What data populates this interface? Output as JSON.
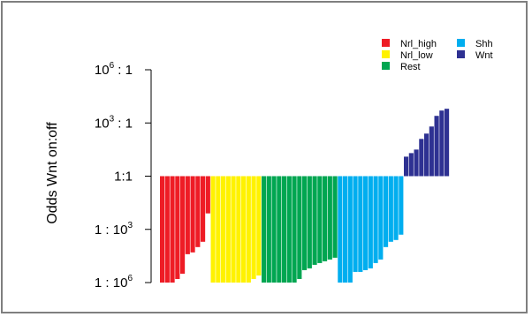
{
  "chart_data": {
    "type": "bar",
    "ylabel": "Odds Wnt on:off",
    "yscale": "log10",
    "baseline_exponent": 0,
    "ylim_exponent": [
      -6,
      6
    ],
    "yticks": [
      {
        "exp": 6,
        "label": "10",
        "sup": "6",
        "suffix": " : 1"
      },
      {
        "exp": 3,
        "label": "10",
        "sup": "3",
        "suffix": " : 1"
      },
      {
        "exp": 0,
        "label": "1:1",
        "sup": "",
        "suffix": ""
      },
      {
        "exp": -3,
        "label": "1 : 10",
        "sup": "3",
        "suffix": ""
      },
      {
        "exp": -6,
        "label": "1 : 10",
        "sup": "6",
        "suffix": ""
      }
    ],
    "legend": [
      {
        "name": "Nrl_high",
        "color": "#ee1c25"
      },
      {
        "name": "Nrl_low",
        "color": "#fff200"
      },
      {
        "name": "Rest",
        "color": "#00a651"
      },
      {
        "name": "Shh",
        "color": "#00aeef"
      },
      {
        "name": "Wnt",
        "color": "#2e3192"
      }
    ],
    "series": [
      {
        "name": "Nrl_high",
        "color": "#ee1c25",
        "values": [
          -6,
          -6,
          -6,
          -5.8,
          -5.5,
          -4.4,
          -4.3,
          -4.0,
          -3.7,
          -2.1
        ]
      },
      {
        "name": "Nrl_low",
        "color": "#fff200",
        "values": [
          -6,
          -6,
          -6,
          -6,
          -6,
          -6,
          -6,
          -6,
          -5.8,
          -5.6
        ]
      },
      {
        "name": "Rest",
        "color": "#00a651",
        "values": [
          -6,
          -6,
          -6,
          -6,
          -6,
          -6,
          -6,
          -5.8,
          -5.3,
          -5.2,
          -5.0,
          -4.9,
          -4.8,
          -4.7,
          -4.6
        ]
      },
      {
        "name": "Shh",
        "color": "#00aeef",
        "values": [
          -6,
          -6,
          -6,
          -5.4,
          -5.4,
          -5.3,
          -5.2,
          -4.9,
          -4.7,
          -4.0,
          -3.7,
          -3.6,
          -3.3
        ]
      },
      {
        "name": "Wnt",
        "color": "#2e3192",
        "values": [
          1.1,
          1.3,
          1.5,
          2.1,
          2.4,
          2.8,
          3.4,
          3.7,
          3.8
        ]
      }
    ]
  }
}
